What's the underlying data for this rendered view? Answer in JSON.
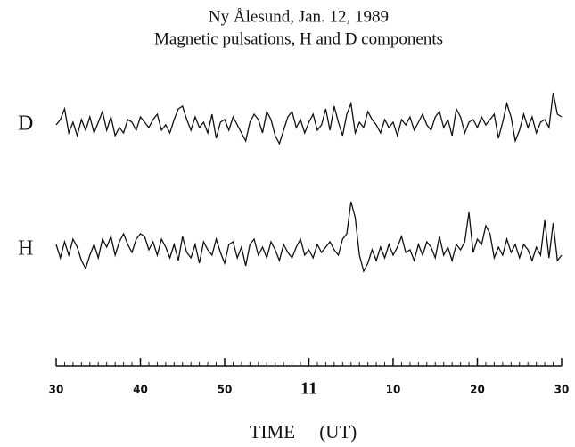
{
  "chart_data": {
    "type": "line",
    "title": "Ny Ålesund, Jan. 12, 1989",
    "subtitle": "Magnetic pulsations, H and D components",
    "x_label": "TIME (UT)",
    "xlim": [
      30,
      90
    ],
    "xticks": [
      30,
      40,
      50,
      {
        "value": 60,
        "label": "11"
      },
      {
        "value": 70,
        "label": "10"
      },
      {
        "value": 80,
        "label": "20"
      },
      {
        "value": 90,
        "label": "30"
      }
    ],
    "xminor_step": 1,
    "ylim": [
      -20,
      20
    ],
    "x": [
      30,
      30.5,
      31,
      31.5,
      32,
      32.5,
      33,
      33.5,
      34,
      34.5,
      35,
      35.5,
      36,
      36.5,
      37,
      37.5,
      38,
      38.5,
      39,
      39.5,
      40,
      40.5,
      41,
      41.5,
      42,
      42.5,
      43,
      43.5,
      44,
      44.5,
      45,
      45.5,
      46,
      46.5,
      47,
      47.5,
      48,
      48.5,
      49,
      49.5,
      50,
      50.5,
      51,
      51.5,
      52,
      52.5,
      53,
      53.5,
      54,
      54.5,
      55,
      55.5,
      56,
      56.5,
      57,
      57.5,
      58,
      58.5,
      59,
      59.5,
      60,
      60.5,
      61,
      61.5,
      62,
      62.5,
      63,
      63.5,
      64,
      64.5,
      65,
      65.5,
      66,
      66.5,
      67,
      67.5,
      68,
      68.5,
      69,
      69.5,
      70,
      70.5,
      71,
      71.5,
      72,
      72.5,
      73,
      73.5,
      74,
      74.5,
      75,
      75.5,
      76,
      76.5,
      77,
      77.5,
      78,
      78.5,
      79,
      79.5,
      80,
      80.5,
      81,
      81.5,
      82,
      82.5,
      83,
      83.5,
      84,
      84.5,
      85,
      85.5,
      86,
      86.5,
      87,
      87.5,
      88,
      88.5,
      89,
      89.5,
      90
    ],
    "series": [
      {
        "name": "D",
        "color": "#111111",
        "values": [
          0,
          2,
          6,
          -3,
          1,
          -4,
          2,
          -2,
          3,
          -3,
          1,
          5,
          -2,
          3,
          -4,
          -1,
          -3,
          2,
          1,
          -2,
          3,
          1,
          -1,
          2,
          4,
          -2,
          0,
          -3,
          2,
          6,
          7,
          2,
          -2,
          3,
          -1,
          1,
          -3,
          4,
          -5,
          1,
          2,
          -2,
          3,
          0,
          -3,
          -6,
          1,
          4,
          2,
          -3,
          5,
          2,
          -4,
          -7,
          -2,
          3,
          5,
          -1,
          2,
          -3,
          1,
          4,
          -2,
          0,
          6,
          -2,
          7,
          1,
          -4,
          4,
          8,
          -3,
          1,
          -1,
          5,
          2,
          0,
          -3,
          2,
          -1,
          1,
          -4,
          2,
          0,
          3,
          -2,
          1,
          4,
          0,
          -2,
          3,
          5,
          -1,
          2,
          -4,
          6,
          3,
          -3,
          1,
          2,
          -1,
          3,
          0,
          2,
          4,
          -5,
          1,
          8,
          3,
          -6,
          -2,
          4,
          -1,
          3,
          -3,
          1,
          2,
          -1,
          12,
          4,
          3
        ]
      },
      {
        "name": "H",
        "color": "#111111",
        "values": [
          2,
          -3,
          3,
          -2,
          4,
          1,
          -4,
          -7,
          -2,
          2,
          -3,
          4,
          1,
          5,
          -2,
          3,
          6,
          2,
          -1,
          4,
          6,
          5,
          0,
          3,
          -2,
          4,
          1,
          -3,
          2,
          -4,
          5,
          -1,
          -3,
          2,
          -5,
          3,
          0,
          -2,
          4,
          -1,
          -5,
          2,
          3,
          -3,
          1,
          -6,
          2,
          4,
          -2,
          1,
          -3,
          3,
          0,
          -4,
          2,
          -1,
          -3,
          1,
          4,
          -2,
          0,
          -3,
          2,
          -1,
          1,
          3,
          0,
          -2,
          4,
          6,
          18,
          12,
          -2,
          -8,
          -5,
          0,
          -4,
          1,
          -3,
          2,
          -2,
          1,
          5,
          -1,
          0,
          -4,
          2,
          -2,
          3,
          1,
          -3,
          5,
          -2,
          1,
          -4,
          2,
          0,
          3,
          14,
          -1,
          4,
          2,
          9,
          6,
          -3,
          1,
          -2,
          4,
          -1,
          2,
          -3,
          2,
          0,
          -4,
          1,
          -2,
          11,
          -3,
          10,
          -4,
          -2
        ]
      }
    ]
  }
}
